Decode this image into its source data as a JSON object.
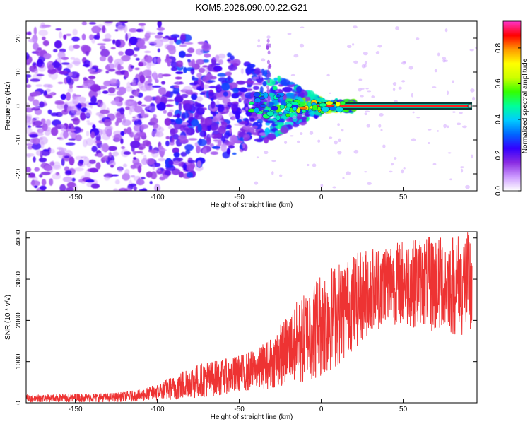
{
  "chart_data": [
    {
      "type": "heatmap",
      "title": "KOM5.2026.090.00.22.G21",
      "xlabel": "Height of straight line (km)",
      "ylabel": "Frequency (Hz)",
      "xlim": [
        -180,
        95
      ],
      "ylim": [
        -25,
        25
      ],
      "xticks": [
        "-150",
        "-100",
        "-50",
        "0",
        "50"
      ],
      "xtick_values": [
        -150,
        -100,
        -50,
        0,
        50
      ],
      "yticks": [
        "-20",
        "-10",
        "0",
        "10",
        "20"
      ],
      "ytick_values": [
        -20,
        -10,
        0,
        10,
        20
      ],
      "colorbar": {
        "label": "Normalized spectral amplitude",
        "range": [
          0,
          0.95
        ],
        "ticks": [
          "0.0",
          "0.2",
          "0.4",
          "0.6",
          "0.8"
        ],
        "tick_values": [
          0,
          0.2,
          0.4,
          0.6,
          0.8
        ],
        "colormap": [
          "#ffffff",
          "#cc99ff",
          "#8a2be2",
          "#3300ff",
          "#0066ff",
          "#00ccff",
          "#00ff99",
          "#33ff00",
          "#ccff00",
          "#ffff00",
          "#ff9900",
          "#ff0000",
          "#ff33cc"
        ]
      },
      "ridge": {
        "frequency": 0,
        "start_height": -10,
        "end_height": 92,
        "amplitude": 0.95
      },
      "color_ridge": "#ff2020",
      "color_line": "#111111"
    },
    {
      "type": "line",
      "xlabel": "Height of straight line (km)",
      "ylabel": "SNR (10 * v/v)",
      "xlim": [
        -180,
        95
      ],
      "ylim": [
        0,
        4150
      ],
      "xticks": [
        "-150",
        "-100",
        "-50",
        "0",
        "50"
      ],
      "xtick_values": [
        -150,
        -100,
        -50,
        0,
        50
      ],
      "yticks": [
        "0",
        "1000",
        "2000",
        "3000",
        "4000"
      ],
      "ytick_values": [
        0,
        1000,
        2000,
        3000,
        4000
      ],
      "series": [
        {
          "name": "SNR",
          "color": "#ee3333",
          "envelope_x": [
            -180,
            -150,
            -130,
            -120,
            -110,
            -100,
            -90,
            -80,
            -70,
            -60,
            -50,
            -40,
            -30,
            -20,
            -10,
            0,
            10,
            20,
            30,
            40,
            50,
            60,
            70,
            80,
            92
          ],
          "envelope_low": [
            20,
            20,
            25,
            30,
            40,
            60,
            80,
            100,
            150,
            200,
            250,
            300,
            350,
            400,
            500,
            650,
            900,
            1300,
            1700,
            1900,
            1900,
            1800,
            1700,
            1650,
            1600
          ],
          "envelope_high": [
            200,
            220,
            230,
            260,
            320,
            450,
            650,
            900,
            1000,
            1050,
            1150,
            1300,
            1600,
            2200,
            2700,
            3200,
            3400,
            3600,
            3800,
            3900,
            3950,
            4000,
            4050,
            4100,
            4150
          ]
        }
      ]
    }
  ]
}
